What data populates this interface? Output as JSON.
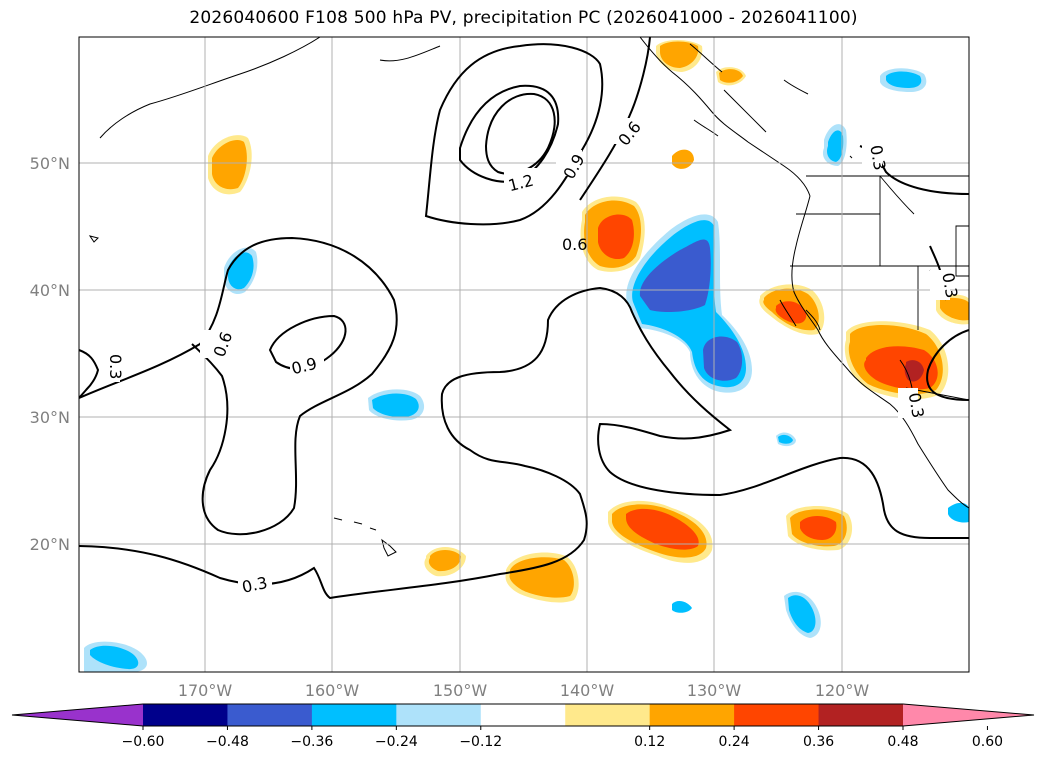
{
  "title": "2026040600 F108 500 hPa PV, precipitation PC (2026041000 - 2026041100)",
  "map": {
    "lon_labels": [
      "170°W",
      "160°W",
      "150°W",
      "140°W",
      "130°W",
      "120°W"
    ],
    "lat_labels": [
      "50°N",
      "40°N",
      "30°N",
      "20°N"
    ],
    "contour_labels": [
      "0.3",
      "0.6",
      "0.9",
      "1.2",
      "0.6",
      "0.9",
      "0.3",
      "0.6",
      "0.3",
      "0.3",
      "0.3"
    ],
    "features": [
      "coastlines",
      "state-borders",
      "gridlines",
      "pv-contours",
      "precipitation-pc-shading"
    ]
  },
  "colorbar": {
    "ticks": [
      "−0.60",
      "−0.48",
      "−0.36",
      "−0.24",
      "−0.12",
      "0.12",
      "0.24",
      "0.36",
      "0.48",
      "0.60"
    ],
    "colors": [
      "#9932cc",
      "#00008b",
      "#3a5bcf",
      "#00bfff",
      "#aee2fa",
      "#ffffff",
      "#ffe98c",
      "#ffa500",
      "#ff4500",
      "#b22222",
      "#ff88aa"
    ]
  }
}
